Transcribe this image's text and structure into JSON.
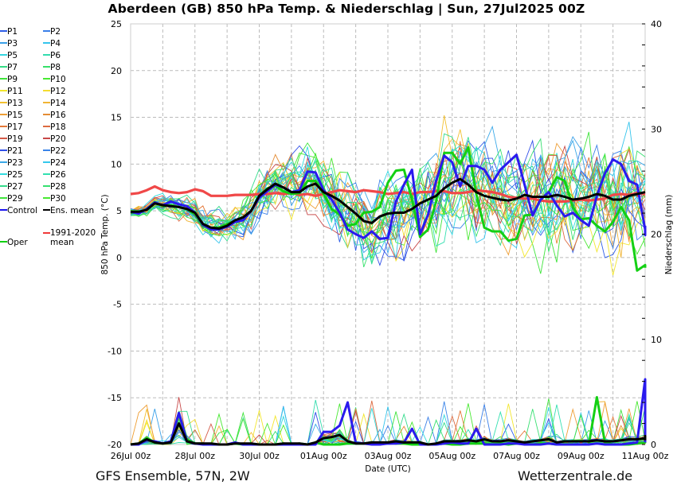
{
  "title": "Aberdeen  (GB)  850 hPa Temp. & Niederschlag | Sun, 27Jul2025 00Z",
  "footer": {
    "left": "GFS Ensemble, 57N, 2W",
    "right": "Wetterzentrale.de"
  },
  "legend": [
    {
      "label": "P1",
      "color": "#2f5ee8"
    },
    {
      "label": "P2",
      "color": "#3a7fe8"
    },
    {
      "label": "P3",
      "color": "#3aa0e8"
    },
    {
      "label": "P4",
      "color": "#35c4ec"
    },
    {
      "label": "P5",
      "color": "#33d6e0"
    },
    {
      "label": "P6",
      "color": "#33dcae"
    },
    {
      "label": "P7",
      "color": "#35dc85"
    },
    {
      "label": "P8",
      "color": "#36e06a"
    },
    {
      "label": "P9",
      "color": "#3ee43a"
    },
    {
      "label": "P10",
      "color": "#48e832"
    },
    {
      "label": "P11",
      "color": "#f2e62c"
    },
    {
      "label": "P12",
      "color": "#f4dc30"
    },
    {
      "label": "P13",
      "color": "#f2c030"
    },
    {
      "label": "P14",
      "color": "#f0b434"
    },
    {
      "label": "P15",
      "color": "#ee9e34"
    },
    {
      "label": "P16",
      "color": "#e48c34"
    },
    {
      "label": "P17",
      "color": "#e47838"
    },
    {
      "label": "P18",
      "color": "#dc6a40"
    },
    {
      "label": "P19",
      "color": "#d45a48"
    },
    {
      "label": "P20",
      "color": "#c84848"
    },
    {
      "label": "P21",
      "color": "#2f4ee8"
    },
    {
      "label": "P22",
      "color": "#3a84e8"
    },
    {
      "label": "P23",
      "color": "#3aa8e8"
    },
    {
      "label": "P24",
      "color": "#35c8ec"
    },
    {
      "label": "P25",
      "color": "#33dce0"
    },
    {
      "label": "P26",
      "color": "#33e0b0"
    },
    {
      "label": "P27",
      "color": "#35dc8c"
    },
    {
      "label": "P28",
      "color": "#36e070"
    },
    {
      "label": "P29",
      "color": "#40e43c"
    },
    {
      "label": "P30",
      "color": "#48e832"
    },
    {
      "label": "Control",
      "color": "#1a14f0"
    },
    {
      "label": "Ens. mean",
      "color": "#000000"
    },
    {
      "label": "Oper",
      "color": "#10d010"
    },
    {
      "label": "1991-2020 mean",
      "color": "#f03a3a"
    }
  ],
  "chart_data": {
    "type": "line",
    "title": "Aberdeen  (GB)  850 hPa Temp. & Niederschlag | Sun, 27Jul2025 00Z",
    "xlabel": "Date (UTC)",
    "ylabel": "850 hPa Temp. (°C)",
    "y2label": "Niederschlag (mm)",
    "x_ticks": [
      "26Jul 00z",
      "28Jul 00z",
      "30Jul 00z",
      "01Aug 00z",
      "03Aug 00z",
      "05Aug 00z",
      "07Aug 00z",
      "09Aug 00z",
      "11Aug 00z"
    ],
    "x_range_hours": [
      0,
      384
    ],
    "x_step_hours": 6,
    "ylim": [
      -20,
      25
    ],
    "y_ticks": [
      -20,
      -15,
      -10,
      -5,
      0,
      5,
      10,
      15,
      20,
      25
    ],
    "y2lim": [
      0,
      40
    ],
    "y2_ticks": [
      0,
      10,
      20,
      30,
      40
    ],
    "grid": true,
    "legend_position": "left-outside",
    "series": [
      {
        "name": "1991-2020 mean",
        "axis": "temp",
        "values": [
          6.8,
          6.9,
          7.2,
          7.6,
          7.2,
          7.0,
          6.9,
          7.0,
          7.3,
          7.1,
          6.6,
          6.6,
          6.6,
          6.7,
          6.7,
          6.7,
          6.8,
          6.8,
          6.9,
          6.8,
          6.9,
          6.7,
          6.8,
          6.6,
          6.8,
          7.0,
          7.2,
          7.1,
          7.0,
          7.2,
          7.1,
          7.0,
          6.8,
          6.9,
          7.0,
          6.8,
          7.0,
          7.0,
          7.1,
          7.1,
          6.9,
          6.9,
          7.0,
          7.2,
          7.1,
          7.0,
          6.8,
          6.5,
          6.4,
          6.3,
          6.3,
          6.1,
          6.0,
          6.0,
          6.0,
          6.1,
          6.2,
          6.1,
          6.2,
          6.3,
          6.7,
          6.8,
          6.7,
          6.9,
          6.8
        ]
      },
      {
        "name": "Ens. mean",
        "axis": "temp",
        "values": [
          4.9,
          4.9,
          5.1,
          5.8,
          5.6,
          5.5,
          5.4,
          5.2,
          4.8,
          3.6,
          3.2,
          3.1,
          3.4,
          4.0,
          4.3,
          5.0,
          6.6,
          7.3,
          7.9,
          7.5,
          7.0,
          7.0,
          7.6,
          7.9,
          7.0,
          6.6,
          6.1,
          5.4,
          4.7,
          3.9,
          3.7,
          4.4,
          4.7,
          4.8,
          4.8,
          5.2,
          5.8,
          6.2,
          6.6,
          7.4,
          8.0,
          8.4,
          7.8,
          7.0,
          6.6,
          6.4,
          6.2,
          6.1,
          6.3,
          6.7,
          6.5,
          6.5,
          6.5,
          6.7,
          6.5,
          6.2,
          6.3,
          6.5,
          6.8,
          6.6,
          6.2,
          6.2,
          6.6,
          6.8,
          7.0
        ]
      },
      {
        "name": "Control",
        "axis": "temp",
        "values": [
          4.9,
          4.7,
          5.2,
          5.9,
          5.6,
          6.0,
          5.7,
          5.5,
          4.8,
          3.5,
          3.0,
          3.0,
          3.3,
          3.8,
          4.0,
          5.0,
          6.4,
          7.1,
          7.8,
          7.5,
          7.0,
          7.2,
          9.2,
          9.1,
          7.2,
          6.2,
          4.8,
          3.0,
          2.5,
          2.1,
          2.8,
          2.0,
          2.1,
          6.0,
          7.8,
          9.4,
          2.5,
          4.6,
          8.2,
          10.9,
          10.2,
          7.6,
          9.8,
          9.8,
          9.4,
          8.0,
          9.4,
          10.2,
          11.0,
          7.8,
          4.5,
          6.2,
          7.0,
          5.6,
          4.4,
          4.8,
          4.0,
          3.4,
          6.6,
          9.0,
          10.5,
          10.0,
          8.2,
          7.8,
          3.0,
          2.4,
          3.2,
          3.4
        ]
      },
      {
        "name": "Oper",
        "axis": "temp",
        "values": [
          4.8,
          4.8,
          5.2,
          5.9,
          5.5,
          5.6,
          5.4,
          5.2,
          4.6,
          3.4,
          3.2,
          3.2,
          3.6,
          3.9,
          4.0,
          5.0,
          6.6,
          7.4,
          7.7,
          7.1,
          6.8,
          6.9,
          8.2,
          8.2,
          6.8,
          5.2,
          4.6,
          3.4,
          3.6,
          4.8,
          4.9,
          5.4,
          8.0,
          9.3,
          9.4,
          6.2,
          2.2,
          3.0,
          6.0,
          11.2,
          11.2,
          10.0,
          11.8,
          6.8,
          3.2,
          2.8,
          2.8,
          1.8,
          2.0,
          4.5,
          4.6,
          6.2,
          7.0,
          8.6,
          8.2,
          5.4,
          4.1,
          4.2,
          3.4,
          2.8,
          3.8,
          5.4,
          4.0,
          -1.4,
          -0.8,
          -1.0,
          -1.1
        ]
      },
      {
        "name": "Oper precip",
        "axis": "precip",
        "values": [
          0,
          0.1,
          0.6,
          0.2,
          0.1,
          0.3,
          3.0,
          0.5,
          0.1,
          0.1,
          0,
          0,
          0,
          0.1,
          0,
          0,
          0,
          0,
          0,
          0.1,
          0,
          0.1,
          0,
          0.2,
          0,
          0,
          0,
          0.1,
          0.1,
          0.1,
          0.1,
          0,
          0.2,
          0.1,
          0.1,
          0,
          0,
          0,
          0,
          0.1,
          0,
          0,
          0.1,
          0.1,
          0.1,
          0,
          0.1,
          0,
          0.1,
          0.1,
          0,
          0.1,
          0.1,
          0,
          0,
          0,
          0,
          0,
          4.5,
          0.2,
          0,
          0,
          0,
          0.1,
          0.2,
          5.2,
          0.4,
          0.3
        ]
      },
      {
        "name": "Control precip",
        "axis": "precip",
        "values": [
          0,
          0,
          0.4,
          0.3,
          0.1,
          0.3,
          3.0,
          0.3,
          0.1,
          0,
          0,
          0,
          0,
          0.2,
          0,
          0,
          0,
          0,
          0,
          0,
          0,
          0,
          0,
          0,
          1.2,
          1.2,
          1.8,
          4.0,
          0.2,
          0.1,
          0,
          0,
          0.1,
          0.1,
          0.2,
          1.5,
          0,
          0,
          0,
          0.1,
          0.2,
          0.1,
          0.1,
          1.5,
          0,
          0,
          0,
          0.1,
          0.1,
          0,
          0,
          0,
          0.1,
          0,
          0,
          0,
          0,
          0,
          0.1,
          0,
          0,
          0,
          0.1,
          0.2,
          6.2,
          0.4,
          0.2
        ]
      },
      {
        "name": "Ens. mean precip",
        "axis": "precip",
        "values": [
          0,
          0.1,
          0.5,
          0.2,
          0.1,
          0.2,
          2.0,
          0.3,
          0.1,
          0.1,
          0.1,
          0,
          0,
          0.1,
          0.1,
          0.1,
          0,
          0,
          0,
          0.1,
          0.1,
          0.1,
          0,
          0.2,
          0.6,
          0.7,
          0.9,
          0.3,
          0.1,
          0.1,
          0.2,
          0.2,
          0.2,
          0.3,
          0.2,
          0.2,
          0.2,
          0,
          0.1,
          0.3,
          0.3,
          0.3,
          0.4,
          0.3,
          0.5,
          0.3,
          0.3,
          0.4,
          0.3,
          0.2,
          0.3,
          0.4,
          0.5,
          0.2,
          0.3,
          0.3,
          0.3,
          0.3,
          0.4,
          0.3,
          0.3,
          0.4,
          0.5,
          0.5,
          0.6,
          0.8,
          0.4
        ]
      }
    ]
  }
}
